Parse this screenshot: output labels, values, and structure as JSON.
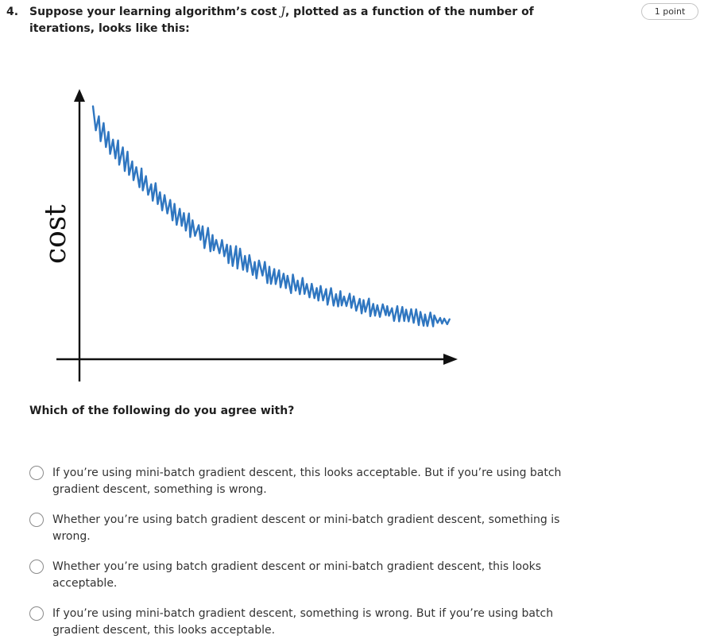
{
  "question": {
    "number": "4.",
    "text_before": "Suppose your learning algorithm’s cost ",
    "math_symbol": "J",
    "text_after": ", plotted as a function of the number of iterations, looks like this:",
    "points": "1 point"
  },
  "figure": {
    "y_axis_label": "cost",
    "curve_color": "#2f76c0",
    "axis_color": "#111111"
  },
  "prompt": "Which of the following do you agree with?",
  "options": [
    {
      "label": "If you’re using mini-batch gradient descent, this looks acceptable. But if you’re using batch gradient descent, something is wrong.",
      "selected": false
    },
    {
      "label": "Whether you’re using batch gradient descent or mini-batch gradient descent, something is wrong.",
      "selected": false
    },
    {
      "label": "Whether you’re using batch gradient descent or mini-batch gradient descent, this looks acceptable.",
      "selected": false
    },
    {
      "label": "If you’re using mini-batch gradient descent, something is wrong. But if you’re using batch gradient descent, this looks acceptable.",
      "selected": false
    }
  ]
}
